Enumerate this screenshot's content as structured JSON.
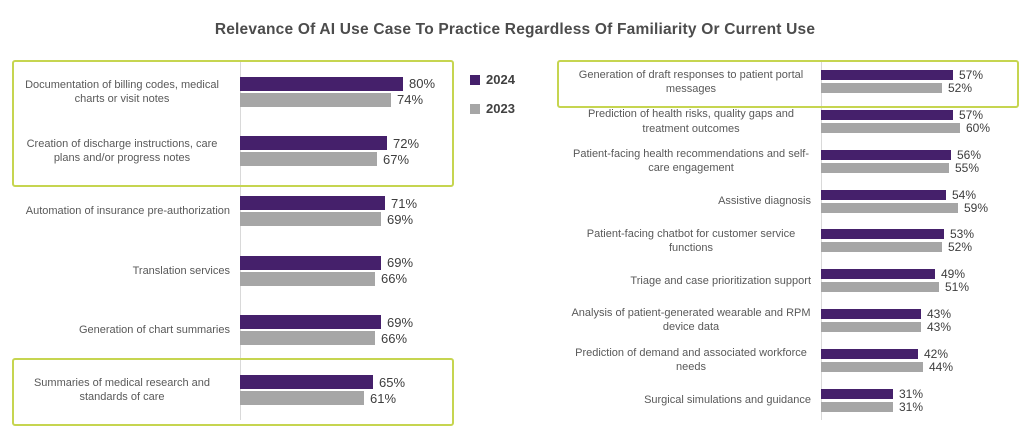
{
  "title": "Relevance Of AI Use Case To Practice Regardless Of Familiarity Or Current Use",
  "legend": {
    "items": [
      {
        "label": "2024",
        "color": "#45206b"
      },
      {
        "label": "2023",
        "color": "#a6a6a6"
      }
    ]
  },
  "colors": {
    "bar_2024": "#45206b",
    "bar_2023": "#a6a6a6",
    "highlight_border": "#c6d550",
    "axis": "#d9d9d9",
    "title_text": "#4c4c4c",
    "label_text": "#595959",
    "value_text": "#3d3d3d"
  },
  "chart_data": [
    {
      "type": "bar",
      "orientation": "horizontal",
      "value_suffix": "%",
      "xlim": [
        0,
        100
      ],
      "grid": false,
      "legend_position": "top-right-of-chart",
      "categories": [
        "Documentation of billing codes, medical charts or visit notes",
        "Creation of discharge instructions, care plans and/or progress notes",
        "Automation of insurance pre-authorization",
        "Translation services",
        "Generation of chart summaries",
        "Summaries of medical research and standards of care"
      ],
      "series": [
        {
          "name": "2024",
          "values": [
            80,
            72,
            71,
            69,
            69,
            65
          ]
        },
        {
          "name": "2023",
          "values": [
            74,
            67,
            69,
            66,
            66,
            61
          ]
        }
      ],
      "highlighted_ranges": [
        [
          0,
          1
        ],
        [
          5,
          5
        ]
      ]
    },
    {
      "type": "bar",
      "orientation": "horizontal",
      "value_suffix": "%",
      "xlim": [
        0,
        100
      ],
      "grid": false,
      "legend_position": "shared",
      "categories": [
        "Generation of draft responses to patient portal messages",
        "Prediction of health risks, quality gaps and treatment outcomes",
        "Patient-facing health recommendations and self-care engagement",
        "Assistive diagnosis",
        "Patient-facing chatbot for customer service functions",
        "Triage and case prioritization support",
        "Analysis of patient-generated wearable and RPM device data",
        "Prediction of demand and associated workforce needs",
        "Surgical simulations and guidance"
      ],
      "series": [
        {
          "name": "2024",
          "values": [
            57,
            57,
            56,
            54,
            53,
            49,
            43,
            42,
            31
          ]
        },
        {
          "name": "2023",
          "values": [
            52,
            60,
            55,
            59,
            52,
            51,
            43,
            44,
            31
          ]
        }
      ],
      "highlighted_ranges": [
        [
          0,
          0
        ]
      ]
    }
  ]
}
